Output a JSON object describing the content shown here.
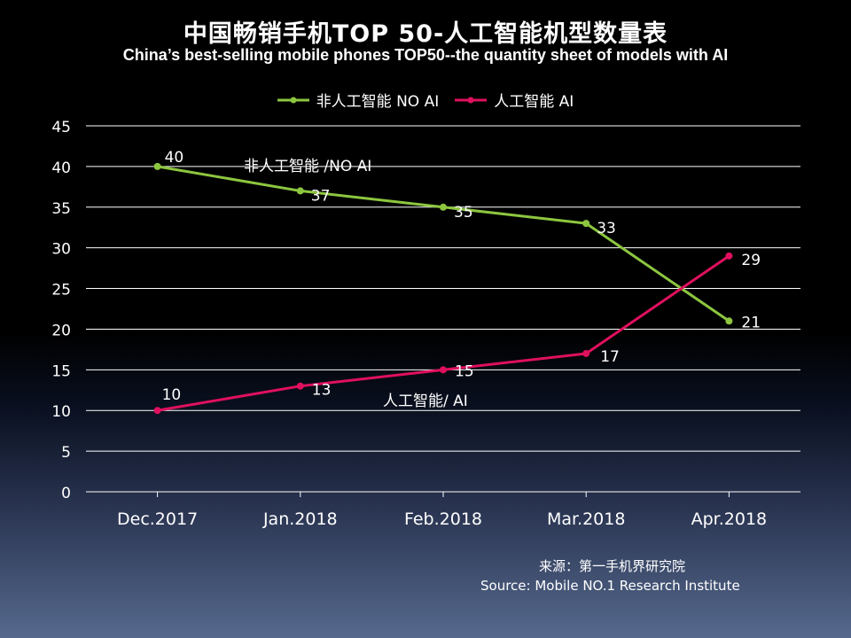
{
  "title_cn": "中国畅销手机TOP 50-人工智能机型数量表",
  "title_en": "China’s best-selling mobile phones TOP50--the quantity sheet of models with AI",
  "source_cn": "来源：第一手机界研究院",
  "source_en": "Source: Mobile NO.1 Research Institute",
  "chart_data": {
    "type": "line",
    "categories": [
      "Dec.2017",
      "Jan.2018",
      "Feb.2018",
      "Mar.2018",
      "Apr.2018"
    ],
    "series": [
      {
        "name": "非人工智能  NO AI",
        "inline_label": "非人工智能 /NO AI",
        "color": "#8dc63f",
        "values": [
          40,
          37,
          35,
          33,
          21
        ]
      },
      {
        "name": "人工智能 AI",
        "inline_label": "人工智能/ AI",
        "color": "#e0105e",
        "values": [
          10,
          13,
          15,
          17,
          29
        ]
      }
    ],
    "ylim": [
      0,
      45
    ],
    "yticks": [
      0,
      5,
      10,
      15,
      20,
      25,
      30,
      35,
      40,
      45
    ],
    "grid": true,
    "legend": "top-center"
  }
}
